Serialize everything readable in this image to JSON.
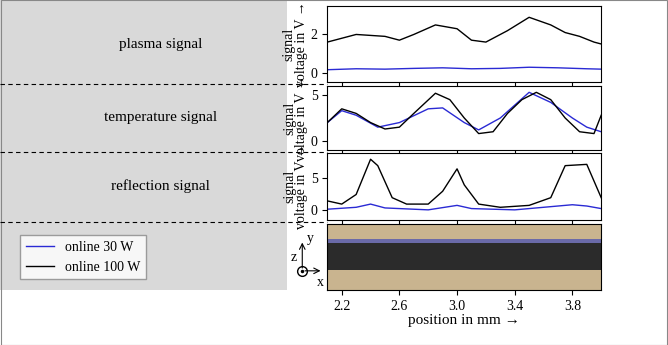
{
  "chart_data": [
    {
      "type": "line",
      "panel_label": "plasma signal",
      "ylabel": "signal\nvoltage in V →",
      "xlim": [
        2.1,
        4.0
      ],
      "xticks": [
        2.2,
        2.6,
        3.0,
        3.4,
        3.8
      ],
      "ylim": [
        -0.5,
        3.5
      ],
      "yticks": [
        0,
        2
      ],
      "tick_labels": "y",
      "legend": "lower left",
      "series": [
        {
          "name": "online 30 W",
          "color": "#2a2ad4",
          "x": [
            2.1,
            2.3,
            2.5,
            2.7,
            2.9,
            3.1,
            3.3,
            3.5,
            3.7,
            3.9,
            4.0
          ],
          "values": [
            0.15,
            0.2,
            0.18,
            0.22,
            0.25,
            0.2,
            0.22,
            0.28,
            0.25,
            0.2,
            0.18
          ]
        },
        {
          "name": "online 100 W",
          "color": "#000000",
          "x": [
            2.1,
            2.3,
            2.5,
            2.6,
            2.7,
            2.85,
            3.0,
            3.1,
            3.2,
            3.35,
            3.5,
            3.65,
            3.75,
            3.85,
            3.95,
            4.0
          ],
          "values": [
            1.6,
            2.0,
            1.9,
            1.7,
            2.0,
            2.5,
            2.3,
            1.7,
            1.6,
            2.2,
            2.9,
            2.5,
            2.1,
            1.9,
            1.6,
            1.5
          ]
        }
      ]
    },
    {
      "type": "line",
      "panel_label": "temperature signal",
      "ylabel": "signal\nvoltage in V →",
      "xlim": [
        2.1,
        4.0
      ],
      "xticks": [
        2.2,
        2.6,
        3.0,
        3.4,
        3.8
      ],
      "ylim": [
        -1,
        6
      ],
      "yticks": [
        0,
        5
      ],
      "tick_labels": "y",
      "series": [
        {
          "name": "online 30 W",
          "color": "#2a2ad4",
          "x": [
            2.1,
            2.2,
            2.3,
            2.45,
            2.6,
            2.8,
            2.9,
            3.05,
            3.15,
            3.3,
            3.5,
            3.65,
            3.8,
            3.9,
            4.0
          ],
          "values": [
            2.0,
            3.3,
            2.8,
            1.5,
            2.0,
            3.5,
            3.6,
            2.0,
            1.2,
            2.5,
            5.3,
            4.2,
            2.5,
            1.5,
            1.0
          ]
        },
        {
          "name": "online 100 W",
          "color": "#000000",
          "x": [
            2.1,
            2.2,
            2.3,
            2.4,
            2.5,
            2.6,
            2.7,
            2.85,
            2.95,
            3.05,
            3.15,
            3.25,
            3.35,
            3.45,
            3.55,
            3.65,
            3.75,
            3.85,
            3.95,
            4.0
          ],
          "values": [
            2.0,
            3.5,
            3.0,
            2.0,
            1.3,
            1.5,
            3.0,
            5.2,
            4.5,
            2.5,
            0.8,
            1.0,
            3.0,
            4.5,
            5.3,
            4.5,
            2.5,
            1.0,
            0.8,
            2.8
          ]
        }
      ]
    },
    {
      "type": "line",
      "panel_label": "reflection signal",
      "ylabel": "signal\nvoltage in V →",
      "xlim": [
        2.1,
        4.0
      ],
      "xticks": [
        2.2,
        2.6,
        3.0,
        3.4,
        3.8
      ],
      "ylim": [
        -1.5,
        9
      ],
      "yticks": [
        0,
        5
      ],
      "tick_labels": "y",
      "series": [
        {
          "name": "online 30 W",
          "color": "#2a2ad4",
          "x": [
            2.1,
            2.3,
            2.4,
            2.5,
            2.8,
            3.0,
            3.1,
            3.4,
            3.8,
            3.9,
            4.0
          ],
          "values": [
            0.2,
            0.5,
            1.0,
            0.4,
            0.1,
            0.8,
            0.3,
            0.1,
            0.9,
            0.7,
            0.3
          ]
        },
        {
          "name": "online 100 W",
          "color": "#000000",
          "x": [
            2.1,
            2.2,
            2.3,
            2.4,
            2.45,
            2.55,
            2.65,
            2.8,
            2.9,
            3.0,
            3.05,
            3.15,
            3.3,
            3.5,
            3.65,
            3.75,
            3.9,
            4.0
          ],
          "values": [
            1.5,
            1.0,
            2.5,
            8.0,
            7.0,
            2.0,
            1.0,
            1.0,
            3.0,
            6.5,
            4.0,
            1.0,
            0.5,
            0.8,
            2.0,
            7.0,
            7.2,
            2.0
          ]
        }
      ]
    },
    {
      "type": "image",
      "xlabel": "position in mm →",
      "xlim": [
        2.1,
        4.0
      ],
      "xticks": [
        2.2,
        2.6,
        3.0,
        3.4,
        3.8
      ],
      "tick_labels": "x",
      "axes_icon": {
        "up": "y",
        "right": "x",
        "out": "z"
      }
    }
  ]
}
